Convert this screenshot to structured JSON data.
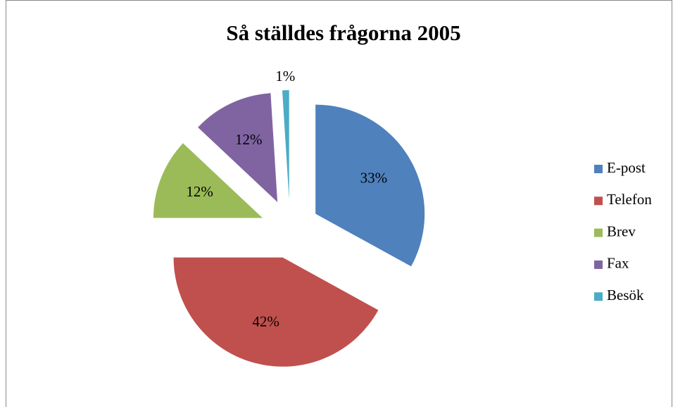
{
  "chart_data": {
    "type": "pie",
    "title": "Så ställdes frågorna 2005",
    "categories": [
      "E-post",
      "Telefon",
      "Brev",
      "Fax",
      "Besök"
    ],
    "values": [
      33,
      42,
      12,
      12,
      1
    ],
    "value_labels": [
      "33%",
      "42%",
      "12%",
      "12%",
      "1%"
    ],
    "colors": [
      "#4f81bd",
      "#c0504d",
      "#9bbb59",
      "#8064a2",
      "#4bacc6"
    ],
    "legend": "right"
  }
}
